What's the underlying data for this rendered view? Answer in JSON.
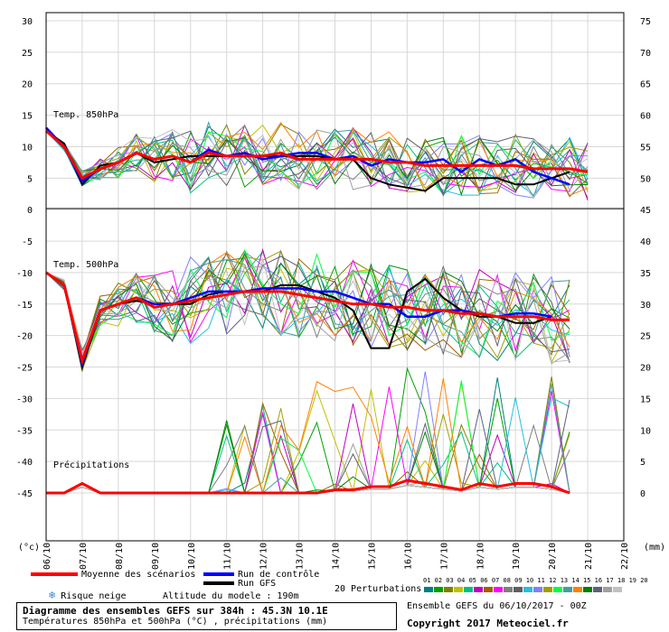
{
  "chart_data": {
    "type": "line",
    "title": "Diagramme des ensembles GEFS sur 384h : 45.3N 10.1E",
    "subtitle": "Températures 850hPa et 500hPa (°C) , précipitations (mm)",
    "ylabel_left": "(°c)",
    "ylabel_right": "(mm)",
    "left_ticks": [
      "30",
      "25",
      "20",
      "15",
      "10",
      "5",
      "0",
      "-5",
      "-10",
      "-15",
      "-20",
      "-25",
      "-30",
      "-35",
      "-40",
      "-45"
    ],
    "right_ticks": [
      "75",
      "70",
      "65",
      "60",
      "55",
      "50",
      "45",
      "40",
      "35",
      "30",
      "25",
      "20",
      "15",
      "10",
      "5",
      "0"
    ],
    "x_ticks": [
      "06/10",
      "07/10",
      "08/10",
      "09/10",
      "10/10",
      "11/10",
      "12/10",
      "13/10",
      "14/10",
      "15/10",
      "16/10",
      "17/10",
      "18/10",
      "19/10",
      "20/10",
      "21/10",
      "22/10"
    ],
    "panel_labels": [
      "Temp. 850hPa",
      "Temp. 500hPa",
      "Précipitations"
    ],
    "series": {
      "t850_mean": [
        12.5,
        10,
        5,
        6.5,
        7.5,
        9,
        8,
        8.5,
        7.5,
        9,
        8.5,
        8.5,
        8.5,
        9,
        8,
        8,
        8,
        8,
        8,
        7.5,
        7.5,
        7,
        7,
        7,
        7,
        7,
        7,
        6.5,
        6.5,
        6.5,
        6
      ],
      "t850_control": [
        13,
        10,
        4.5,
        6.5,
        7.5,
        9,
        8,
        8.5,
        7.5,
        9.5,
        8.5,
        9,
        8,
        8.5,
        9,
        9,
        8,
        8.5,
        7,
        8,
        7.5,
        7.5,
        8,
        6,
        8,
        7,
        8,
        6,
        5,
        4
      ],
      "t850_gfs": [
        12.5,
        10.5,
        4,
        7,
        7.5,
        9,
        7.5,
        8,
        8.5,
        8.5,
        8.5,
        8.5,
        8.5,
        8.5,
        8.5,
        8.5,
        8,
        8,
        5,
        4,
        3.5,
        3,
        5,
        5,
        5,
        5,
        4,
        4,
        5,
        6
      ],
      "t500_mean": [
        -10,
        -12,
        -24,
        -16,
        -15,
        -14,
        -15.5,
        -15,
        -14.5,
        -14,
        -13.5,
        -13,
        -13,
        -13,
        -13.5,
        -14,
        -14.5,
        -15,
        -15,
        -15.5,
        -15.5,
        -16,
        -16,
        -16.5,
        -16.5,
        -17,
        -17,
        -17,
        -17.5,
        -17.5
      ],
      "t500_control": [
        -10,
        -12,
        -24.5,
        -16,
        -15,
        -14,
        -15,
        -15,
        -14,
        -13,
        -13,
        -13,
        -12.5,
        -12.5,
        -12.5,
        -13,
        -13,
        -14,
        -15,
        -15,
        -17,
        -17,
        -16,
        -16,
        -16.5,
        -17,
        -16.5,
        -16.5,
        -17
      ],
      "t500_gfs": [
        -10,
        -12,
        -25,
        -16,
        -15,
        -14.5,
        -15,
        -15,
        -15,
        -13.5,
        -13,
        -13,
        -13,
        -12,
        -12,
        -13,
        -14,
        -16,
        -22,
        -22,
        -13,
        -11,
        -14,
        -16,
        -17,
        -17,
        -18,
        -18,
        -17
      ],
      "precip_mean": [
        0,
        0,
        1.5,
        0,
        0,
        0,
        0,
        0,
        0,
        0,
        0,
        0,
        0,
        0,
        0,
        0,
        0.5,
        0.5,
        1,
        1,
        2,
        1.5,
        1,
        0.5,
        1.5,
        1,
        1.5,
        1.5,
        1,
        0
      ]
    },
    "ylim_left": [
      -45,
      30
    ],
    "ylim_right": [
      0,
      75
    ]
  },
  "legend": {
    "mean_label": "Moyenne des scénarios",
    "control_label": "Run de contrôle",
    "gfs_label": "Run GFS",
    "snow_label": "Risque neige",
    "altitude_label": "Altitude du modele : 190m",
    "perturbations_label": "20 Perturbations",
    "perturbation_numbers": "01 02 03 04 05 06 07 08 09 10 11 12 13 14 15 16 17 18 19 20",
    "ensemble_run": "Ensemble GEFS du 06/10/2017 - 00Z",
    "copyright": "Copyright 2017 Meteociel.fr"
  },
  "colors": {
    "mean": "#ff0000",
    "control": "#0000ff",
    "gfs": "#000000",
    "perturbations": [
      "#008080",
      "#00a000",
      "#808000",
      "#c0c000",
      "#00c080",
      "#c000c0",
      "#a06000",
      "#ff00ff",
      "#808080",
      "#606060",
      "#20c0e0",
      "#8080ff",
      "#a0a000",
      "#00ff40",
      "#40a0a0",
      "#ff8000",
      "#008000",
      "#606080",
      "#a0a0a0",
      "#c0c0c0"
    ]
  }
}
